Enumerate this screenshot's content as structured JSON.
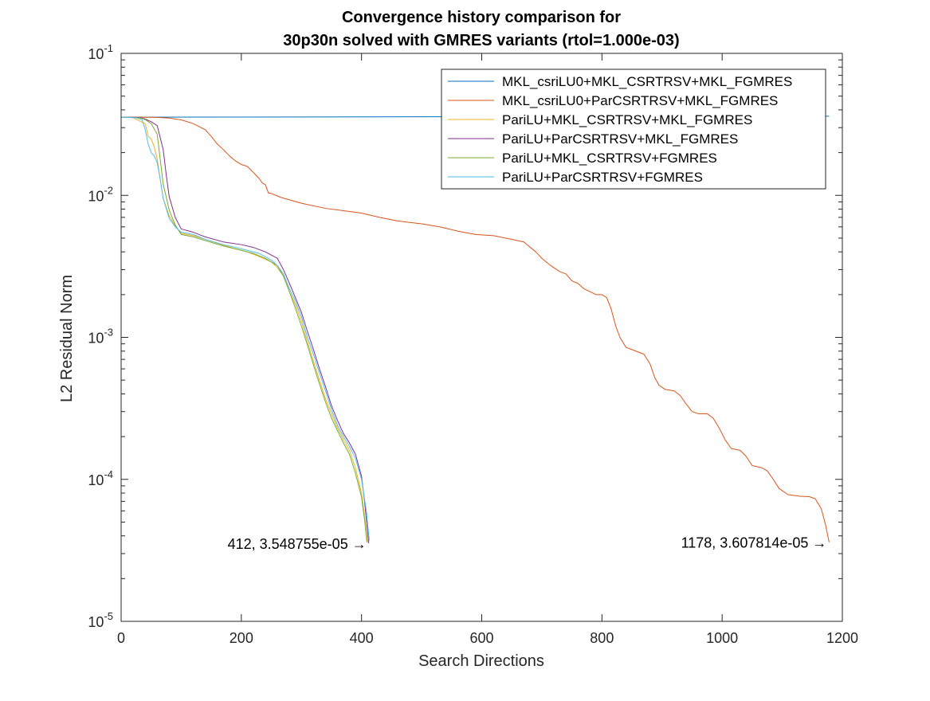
{
  "chart_data": {
    "type": "line",
    "title_lines": [
      "Convergence history comparison for",
      "30p30n solved with GMRES variants (rtol=1.000e-03)"
    ],
    "xlabel": "Search Directions",
    "ylabel": "L2 Residual Norm",
    "xlim": [
      0,
      1200
    ],
    "ylim": [
      1e-05,
      0.1
    ],
    "y_scale": "log",
    "grid": false,
    "legend_position": "top-right",
    "x_ticks": [
      0,
      200,
      400,
      600,
      800,
      1000,
      1200
    ],
    "y_ticks": [
      {
        "value": 1e-05,
        "base": "10",
        "exp": "-5"
      },
      {
        "value": 0.0001,
        "base": "10",
        "exp": "-4"
      },
      {
        "value": 0.001,
        "base": "10",
        "exp": "-3"
      },
      {
        "value": 0.01,
        "base": "10",
        "exp": "-2"
      },
      {
        "value": 0.1,
        "base": "10",
        "exp": "-1"
      }
    ],
    "series": [
      {
        "name": "MKL_csriLU0+MKL_CSRTRSV+MKL_FGMRES",
        "color": "#0072bd",
        "points": [
          [
            0,
            0.0355
          ],
          [
            1178,
            0.0361
          ]
        ]
      },
      {
        "name": "MKL_csriLU0+ParCSRTRSV+MKL_FGMRES",
        "color": "#d95319",
        "points": [
          [
            0,
            0.0356
          ],
          [
            30,
            0.0355
          ],
          [
            60,
            0.0354
          ],
          [
            80,
            0.035
          ],
          [
            100,
            0.034
          ],
          [
            120,
            0.032
          ],
          [
            140,
            0.029
          ],
          [
            150,
            0.026
          ],
          [
            160,
            0.023
          ],
          [
            170,
            0.021
          ],
          [
            180,
            0.019
          ],
          [
            190,
            0.0175
          ],
          [
            200,
            0.0165
          ],
          [
            210,
            0.016
          ],
          [
            220,
            0.0145
          ],
          [
            230,
            0.0131
          ],
          [
            235,
            0.0122
          ],
          [
            240,
            0.0119
          ],
          [
            245,
            0.0104
          ],
          [
            250,
            0.0103
          ],
          [
            265,
            0.0097
          ],
          [
            280,
            0.0093
          ],
          [
            300,
            0.0088
          ],
          [
            340,
            0.0081
          ],
          [
            380,
            0.0077
          ],
          [
            400,
            0.0075
          ],
          [
            430,
            0.007
          ],
          [
            460,
            0.0066
          ],
          [
            500,
            0.0063
          ],
          [
            530,
            0.006
          ],
          [
            560,
            0.0056
          ],
          [
            590,
            0.0053
          ],
          [
            620,
            0.0052
          ],
          [
            650,
            0.0049
          ],
          [
            670,
            0.0047
          ],
          [
            690,
            0.004
          ],
          [
            700,
            0.0036
          ],
          [
            715,
            0.0032
          ],
          [
            730,
            0.0029
          ],
          [
            740,
            0.0028
          ],
          [
            750,
            0.0025
          ],
          [
            760,
            0.0024
          ],
          [
            770,
            0.0022
          ],
          [
            780,
            0.0021
          ],
          [
            790,
            0.002
          ],
          [
            800,
            0.002
          ],
          [
            808,
            0.0019
          ],
          [
            815,
            0.0016
          ],
          [
            823,
            0.0012
          ],
          [
            830,
            0.001
          ],
          [
            840,
            0.00085
          ],
          [
            860,
            0.00079
          ],
          [
            870,
            0.00076
          ],
          [
            880,
            0.00065
          ],
          [
            888,
            0.00052
          ],
          [
            895,
            0.00046
          ],
          [
            905,
            0.00043
          ],
          [
            920,
            0.00042
          ],
          [
            930,
            0.00039
          ],
          [
            940,
            0.00034
          ],
          [
            950,
            0.0003
          ],
          [
            960,
            0.00029
          ],
          [
            975,
            0.00029
          ],
          [
            985,
            0.00027
          ],
          [
            995,
            0.00023
          ],
          [
            1005,
            0.00019
          ],
          [
            1015,
            0.000165
          ],
          [
            1030,
            0.00016
          ],
          [
            1040,
            0.000145
          ],
          [
            1050,
            0.000125
          ],
          [
            1065,
            0.000121
          ],
          [
            1075,
            0.000115
          ],
          [
            1085,
            0.0001
          ],
          [
            1095,
            8.6e-05
          ],
          [
            1110,
            7.8e-05
          ],
          [
            1130,
            7.6e-05
          ],
          [
            1145,
            7.55e-05
          ],
          [
            1155,
            7.3e-05
          ],
          [
            1165,
            6.2e-05
          ],
          [
            1172,
            4.8e-05
          ],
          [
            1178,
            3.607814e-05
          ]
        ]
      },
      {
        "name": "PariLU+MKL_CSRTRSV+MKL_FGMRES",
        "color": "#edb120",
        "points": [
          [
            0,
            0.0355
          ],
          [
            10,
            0.0355
          ],
          [
            20,
            0.0352
          ],
          [
            30,
            0.0335
          ],
          [
            40,
            0.032
          ],
          [
            45,
            0.026
          ],
          [
            50,
            0.025
          ],
          [
            55,
            0.022
          ],
          [
            60,
            0.018
          ],
          [
            65,
            0.013
          ],
          [
            70,
            0.0095
          ],
          [
            80,
            0.0072
          ],
          [
            90,
            0.0061
          ],
          [
            100,
            0.0054
          ],
          [
            120,
            0.0052
          ],
          [
            140,
            0.0049
          ],
          [
            160,
            0.0046
          ],
          [
            190,
            0.0042
          ],
          [
            210,
            0.004
          ],
          [
            230,
            0.0037
          ],
          [
            250,
            0.0034
          ],
          [
            260,
            0.0031
          ],
          [
            270,
            0.0027
          ],
          [
            280,
            0.0021
          ],
          [
            290,
            0.0017
          ],
          [
            300,
            0.0013
          ],
          [
            310,
            0.00093
          ],
          [
            320,
            0.00068
          ],
          [
            330,
            0.0005
          ],
          [
            340,
            0.00037
          ],
          [
            350,
            0.00029
          ],
          [
            360,
            0.00023
          ],
          [
            370,
            0.00019
          ],
          [
            380,
            0.00016
          ],
          [
            390,
            0.00012
          ],
          [
            400,
            8e-05
          ],
          [
            405,
            5.5e-05
          ],
          [
            410,
            3.6e-05
          ]
        ]
      },
      {
        "name": "PariLU+ParCSRTRSV+MKL_FGMRES",
        "color": "#7e2f8e",
        "points": [
          [
            0,
            0.0355
          ],
          [
            30,
            0.0354
          ],
          [
            40,
            0.0345
          ],
          [
            50,
            0.033
          ],
          [
            60,
            0.031
          ],
          [
            70,
            0.021
          ],
          [
            75,
            0.014
          ],
          [
            80,
            0.0098
          ],
          [
            90,
            0.007
          ],
          [
            100,
            0.0058
          ],
          [
            120,
            0.0055
          ],
          [
            140,
            0.0051
          ],
          [
            170,
            0.0047
          ],
          [
            200,
            0.0045
          ],
          [
            220,
            0.0043
          ],
          [
            240,
            0.004
          ],
          [
            260,
            0.0036
          ],
          [
            270,
            0.003
          ],
          [
            280,
            0.0024
          ],
          [
            290,
            0.0019
          ],
          [
            300,
            0.0015
          ],
          [
            310,
            0.0011
          ],
          [
            320,
            0.00082
          ],
          [
            330,
            0.0006
          ],
          [
            340,
            0.00045
          ],
          [
            350,
            0.00033
          ],
          [
            360,
            0.00026
          ],
          [
            370,
            0.00021
          ],
          [
            380,
            0.00018
          ],
          [
            390,
            0.00015
          ],
          [
            400,
            0.000105
          ],
          [
            405,
            7e-05
          ],
          [
            412,
            3.548755e-05
          ]
        ]
      },
      {
        "name": "PariLU+MKL_CSRTRSV+FGMRES",
        "color": "#77ac30",
        "points": [
          [
            0,
            0.0355
          ],
          [
            30,
            0.0352
          ],
          [
            40,
            0.0342
          ],
          [
            50,
            0.032
          ],
          [
            60,
            0.027
          ],
          [
            65,
            0.018
          ],
          [
            70,
            0.012
          ],
          [
            80,
            0.0079
          ],
          [
            90,
            0.0062
          ],
          [
            100,
            0.0053
          ],
          [
            120,
            0.0051
          ],
          [
            140,
            0.0048
          ],
          [
            170,
            0.0044
          ],
          [
            200,
            0.0041
          ],
          [
            220,
            0.0039
          ],
          [
            240,
            0.0036
          ],
          [
            260,
            0.0032
          ],
          [
            270,
            0.0027
          ],
          [
            280,
            0.0021
          ],
          [
            290,
            0.0016
          ],
          [
            300,
            0.0012
          ],
          [
            310,
            0.00088
          ],
          [
            320,
            0.00064
          ],
          [
            330,
            0.00047
          ],
          [
            340,
            0.00035
          ],
          [
            350,
            0.00027
          ],
          [
            360,
            0.00022
          ],
          [
            370,
            0.00018
          ],
          [
            380,
            0.00015
          ],
          [
            390,
            0.00011
          ],
          [
            400,
            7.5e-05
          ],
          [
            405,
            5.2e-05
          ],
          [
            409,
            3.6e-05
          ]
        ]
      },
      {
        "name": "PariLU+ParCSRTRSV+FGMRES",
        "color": "#4dbeee",
        "points": [
          [
            0,
            0.0355
          ],
          [
            25,
            0.0352
          ],
          [
            35,
            0.034
          ],
          [
            40,
            0.029
          ],
          [
            45,
            0.023
          ],
          [
            50,
            0.02
          ],
          [
            55,
            0.019
          ],
          [
            60,
            0.017
          ],
          [
            65,
            0.013
          ],
          [
            70,
            0.0095
          ],
          [
            80,
            0.0069
          ],
          [
            90,
            0.006
          ],
          [
            100,
            0.0055
          ],
          [
            120,
            0.0053
          ],
          [
            140,
            0.0049
          ],
          [
            170,
            0.0045
          ],
          [
            200,
            0.0042
          ],
          [
            230,
            0.0039
          ],
          [
            250,
            0.0035
          ],
          [
            260,
            0.0032
          ],
          [
            270,
            0.0028
          ],
          [
            280,
            0.0022
          ],
          [
            290,
            0.0018
          ],
          [
            300,
            0.0014
          ],
          [
            310,
            0.001
          ],
          [
            320,
            0.00076
          ],
          [
            330,
            0.00056
          ],
          [
            340,
            0.00042
          ],
          [
            350,
            0.00031
          ],
          [
            360,
            0.00024
          ],
          [
            370,
            0.0002
          ],
          [
            380,
            0.00017
          ],
          [
            390,
            0.00014
          ],
          [
            400,
            0.0001
          ],
          [
            408,
            6e-05
          ],
          [
            413,
            3.7e-05
          ]
        ]
      }
    ],
    "annotations": [
      {
        "text": "412, 3.548755e-05 →",
        "x": 412,
        "y": 3.548755e-05
      },
      {
        "text": "1178, 3.607814e-05 →",
        "x": 1178,
        "y": 3.607814e-05
      }
    ]
  }
}
